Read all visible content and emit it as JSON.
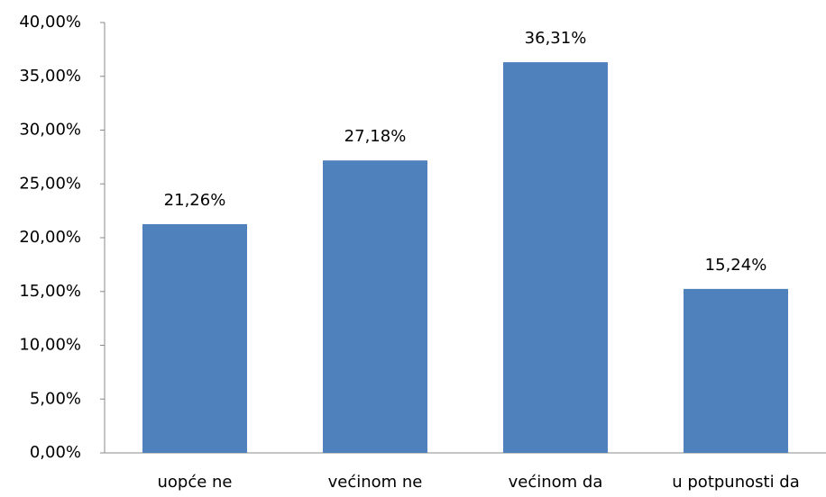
{
  "chart_data": {
    "type": "bar",
    "categories": [
      "uopće ne",
      "većinom ne",
      "većinom da",
      "u potpunosti da"
    ],
    "values": [
      21.26,
      27.18,
      36.31,
      15.24
    ],
    "value_labels": [
      "21,26%",
      "27,18%",
      "36,31%",
      "15,24%"
    ],
    "color": "#4f81bd",
    "ylim": [
      0,
      40
    ],
    "yticks": [
      {
        "value": 0,
        "label": "0,00%"
      },
      {
        "value": 5,
        "label": "5,00%"
      },
      {
        "value": 10,
        "label": "10,00%"
      },
      {
        "value": 15,
        "label": "15,00%"
      },
      {
        "value": 20,
        "label": "20,00%"
      },
      {
        "value": 25,
        "label": "25,00%"
      },
      {
        "value": 30,
        "label": "30,00%"
      },
      {
        "value": 35,
        "label": "35,00%"
      },
      {
        "value": 40,
        "label": "40,00%"
      }
    ],
    "grid": false
  }
}
